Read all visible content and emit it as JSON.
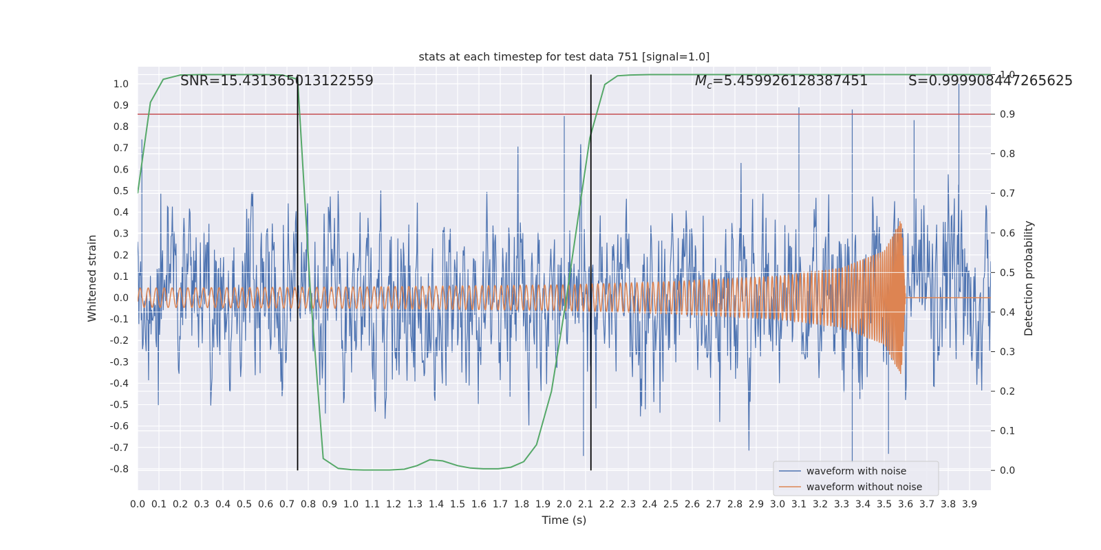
{
  "chart_data": {
    "type": "line",
    "title": "stats at each timestep for test data 751 [signal=1.0]",
    "xlabel": "Time (s)",
    "ylabel": "Whitened strain",
    "y2label": "Detection probability",
    "xlim": [
      0.0,
      4.0
    ],
    "ylim": [
      -0.9,
      1.08
    ],
    "y2lim": [
      -0.05,
      1.02
    ],
    "xticks": [
      "0.0",
      "0.1",
      "0.2",
      "0.3",
      "0.4",
      "0.5",
      "0.6",
      "0.7",
      "0.8",
      "0.9",
      "1.0",
      "1.1",
      "1.2",
      "1.3",
      "1.4",
      "1.5",
      "1.6",
      "1.7",
      "1.8",
      "1.9",
      "2.0",
      "2.1",
      "2.2",
      "2.3",
      "2.4",
      "2.5",
      "2.6",
      "2.7",
      "2.8",
      "2.9",
      "3.0",
      "3.1",
      "3.2",
      "3.3",
      "3.4",
      "3.5",
      "3.6",
      "3.7",
      "3.8",
      "3.9"
    ],
    "yticks": [
      "1.0",
      "0.9",
      "0.8",
      "0.7",
      "0.6",
      "0.5",
      "0.4",
      "0.3",
      "0.2",
      "0.1",
      "0.0",
      "-0.1",
      "-0.2",
      "-0.3",
      "-0.4",
      "-0.5",
      "-0.6",
      "-0.7",
      "-0.8"
    ],
    "y2ticks": [
      "1.0",
      "0.9",
      "0.8",
      "0.7",
      "0.6",
      "0.5",
      "0.4",
      "0.3",
      "0.2",
      "0.1",
      "0.0"
    ],
    "grid": true,
    "legend_position": "bottom-right",
    "annotations": {
      "snr": "SNR=15.431365013122559",
      "mc_symbol": "M",
      "mc_sub": "c",
      "mc_value": "=5.459926128387451",
      "s": "S=0.999908447265625"
    },
    "threshold": {
      "y2": 0.9,
      "color": "#c44e52"
    },
    "vlines": [
      0.75,
      2.125
    ],
    "series": [
      {
        "name": "waveform with noise",
        "color": "#4c72b0",
        "kind": "noise",
        "envelope": {
          "typical_amplitude": 0.33,
          "max": 1.0,
          "min": -0.78
        },
        "peaks": [
          [
            0.02,
            0.74
          ],
          [
            2.0,
            0.85
          ],
          [
            3.1,
            0.89
          ],
          [
            3.35,
            0.88
          ],
          [
            3.64,
            0.83
          ],
          [
            3.85,
            1.0
          ],
          [
            3.35,
            -0.77
          ],
          [
            3.52,
            -0.73
          ],
          [
            2.09,
            -0.74
          ]
        ]
      },
      {
        "name": "waveform without noise",
        "color": "#dd8452",
        "kind": "chirp",
        "samples": {
          "t": [
            0.0,
            1.0,
            2.0,
            2.5,
            3.0,
            3.3,
            3.5,
            3.58,
            3.6,
            4.0
          ],
          "amplitude": [
            0.045,
            0.05,
            0.06,
            0.075,
            0.1,
            0.14,
            0.22,
            0.37,
            0.0,
            0.0
          ]
        }
      },
      {
        "name": "Detection probability",
        "color": "#55a868",
        "axis": "right",
        "x": [
          0.0,
          0.06,
          0.12,
          0.2,
          0.3,
          0.4,
          0.5,
          0.6,
          0.68,
          0.75,
          0.81,
          0.87,
          0.94,
          1.0,
          1.06,
          1.12,
          1.18,
          1.25,
          1.31,
          1.37,
          1.43,
          1.5,
          1.56,
          1.62,
          1.69,
          1.75,
          1.81,
          1.87,
          1.94,
          2.0,
          2.06,
          2.12,
          2.19,
          2.25,
          2.31,
          2.4,
          2.6,
          3.0,
          3.5,
          4.0
        ],
        "y": [
          0.7,
          0.93,
          0.988,
          0.999,
          1.0,
          1.0,
          1.0,
          1.0,
          0.999,
          0.988,
          0.45,
          0.03,
          0.005,
          0.002,
          0.001,
          0.001,
          0.001,
          0.003,
          0.012,
          0.027,
          0.024,
          0.012,
          0.006,
          0.004,
          0.004,
          0.008,
          0.022,
          0.065,
          0.2,
          0.4,
          0.62,
          0.84,
          0.975,
          0.997,
          0.999,
          1.0,
          1.0,
          1.0,
          1.0,
          1.0
        ]
      }
    ]
  }
}
